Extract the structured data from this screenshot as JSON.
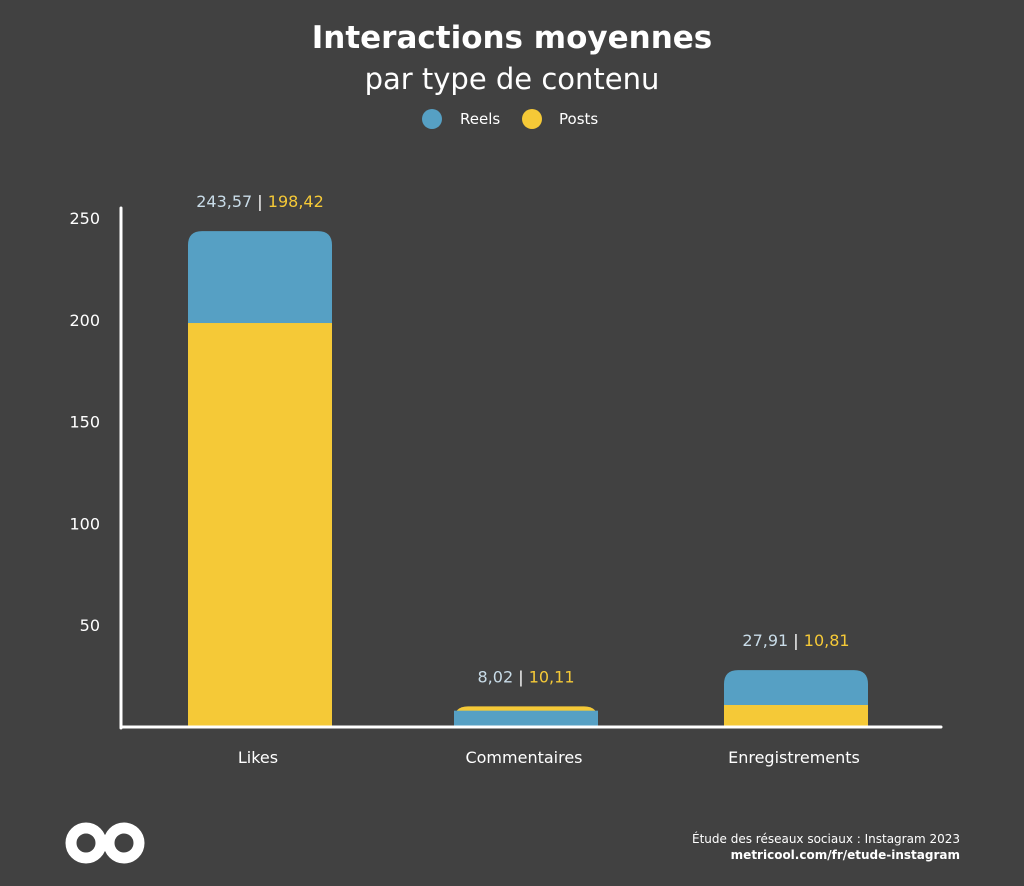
{
  "header": {
    "title": "Interactions moyennes",
    "subtitle": "par type de contenu"
  },
  "colors": {
    "background": "#414141",
    "reels": "#56A0C4",
    "posts": "#F5C937",
    "reels_label": "#C9DCE8",
    "axis": "#FFFFFF"
  },
  "legend": [
    {
      "name": "Reels",
      "color": "#56A0C4"
    },
    {
      "name": "Posts",
      "color": "#F5C937"
    }
  ],
  "chart_data": {
    "type": "bar",
    "categories": [
      "Likes",
      "Commentaires",
      "Enregistrements"
    ],
    "series": [
      {
        "name": "Reels",
        "values": [
          243.57,
          8.02,
          27.91
        ],
        "labels": [
          "243,57",
          "8,02",
          "27,91"
        ],
        "color": "#56A0C4"
      },
      {
        "name": "Posts",
        "values": [
          198.42,
          10.11,
          10.81
        ],
        "labels": [
          "198,42",
          "10,11",
          "10,81"
        ],
        "color": "#F5C937"
      }
    ],
    "yticks": [
      50,
      100,
      150,
      200,
      250
    ],
    "ylim": [
      0,
      260
    ],
    "grid": false,
    "legend_position": "top-center",
    "label_separator": "|"
  },
  "footer": {
    "source": "Étude des réseaux sociaux : Instagram 2023",
    "url": "metricool.com/fr/etude-instagram",
    "logo": "metricool-infinity-logo"
  }
}
